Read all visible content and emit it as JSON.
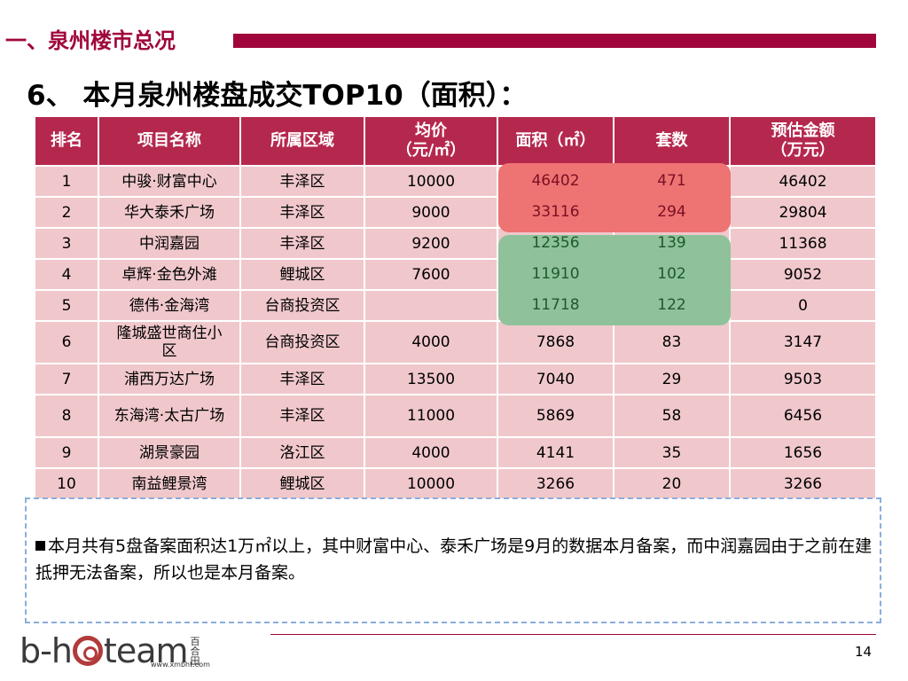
{
  "header": {
    "section_title": "一、泉州楼市总况",
    "slide_title": "6、 本月泉州楼盘成交TOP10（面积）："
  },
  "colors": {
    "brand": "#a0063b",
    "table_header": "#b5284e",
    "row_bg": "#f0c8cb",
    "highlight_red": "#ee7373",
    "highlight_green": "#8fc29a",
    "note_border": "#8aaedc"
  },
  "chart_data": {
    "type": "table",
    "columns": [
      "排名",
      "项目名称",
      "所属区域",
      "均价\n（元/㎡）",
      "面积（㎡）",
      "套数",
      "预估金额\n（万元）"
    ],
    "rows": [
      [
        "1",
        "中骏·财富中心",
        "丰泽区",
        "10000",
        "46402",
        "471",
        "46402"
      ],
      [
        "2",
        "华大泰禾广场",
        "丰泽区",
        "9000",
        "33116",
        "294",
        "29804"
      ],
      [
        "3",
        "中润嘉园",
        "丰泽区",
        "9200",
        "12356",
        "139",
        "11368"
      ],
      [
        "4",
        "卓辉·金色外滩",
        "鲤城区",
        "7600",
        "11910",
        "102",
        "9052"
      ],
      [
        "5",
        "德伟·金海湾",
        "台商投资区",
        "",
        "11718",
        "122",
        "0"
      ],
      [
        "6",
        "隆城盛世商住小区",
        "台商投资区",
        "4000",
        "7868",
        "83",
        "3147"
      ],
      [
        "7",
        "浦西万达广场",
        "丰泽区",
        "13500",
        "7040",
        "29",
        "9503"
      ],
      [
        "8",
        "东海湾·太古广场",
        "丰泽区",
        "11000",
        "5869",
        "58",
        "6456"
      ],
      [
        "9",
        "湖景豪园",
        "洛江区",
        "4000",
        "4141",
        "35",
        "1656"
      ],
      [
        "10",
        "南益鲤景湾",
        "鲤城区",
        "10000",
        "3266",
        "20",
        "3266"
      ]
    ],
    "highlights": [
      {
        "rows": [
          1,
          2
        ],
        "columns": [
          "面积（㎡）",
          "套数"
        ],
        "color": "#ee7373"
      },
      {
        "rows": [
          3,
          4,
          5
        ],
        "columns": [
          "面积（㎡）",
          "套数"
        ],
        "color": "#8fc29a"
      }
    ]
  },
  "table": {
    "headers": {
      "rank": "排名",
      "name": "项目名称",
      "district": "所属区域",
      "price_l1": "均价",
      "price_l2": "（元/㎡）",
      "area": "面积（㎡）",
      "units": "套数",
      "amount_l1": "预估金额",
      "amount_l2": "（万元）"
    },
    "rows": [
      {
        "rank": "1",
        "name": "中骏·财富中心",
        "district": "丰泽区",
        "price": "10000",
        "area": "46402",
        "units": "471",
        "amount": "46402"
      },
      {
        "rank": "2",
        "name": "华大泰禾广场",
        "district": "丰泽区",
        "price": "9000",
        "area": "33116",
        "units": "294",
        "amount": "29804"
      },
      {
        "rank": "3",
        "name": "中润嘉园",
        "district": "丰泽区",
        "price": "9200",
        "area": "12356",
        "units": "139",
        "amount": "11368"
      },
      {
        "rank": "4",
        "name": "卓辉·金色外滩",
        "district": "鲤城区",
        "price": "7600",
        "area": "11910",
        "units": "102",
        "amount": "9052"
      },
      {
        "rank": "5",
        "name": "德伟·金海湾",
        "district": "台商投资区",
        "price": "",
        "area": "11718",
        "units": "122",
        "amount": "0"
      },
      {
        "rank": "6",
        "name": "隆城盛世商住小区",
        "district": "台商投资区",
        "price": "4000",
        "area": "7868",
        "units": "83",
        "amount": "3147"
      },
      {
        "rank": "7",
        "name": "浦西万达广场",
        "district": "丰泽区",
        "price": "13500",
        "area": "7040",
        "units": "29",
        "amount": "9503"
      },
      {
        "rank": "8",
        "name": "东海湾·太古广场",
        "district": "丰泽区",
        "price": "11000",
        "area": "5869",
        "units": "58",
        "amount": "6456"
      },
      {
        "rank": "9",
        "name": "湖景豪园",
        "district": "洛江区",
        "price": "4000",
        "area": "4141",
        "units": "35",
        "amount": "1656"
      },
      {
        "rank": "10",
        "name": "南益鲤景湾",
        "district": "鲤城区",
        "price": "10000",
        "area": "3266",
        "units": "20",
        "amount": "3266"
      }
    ]
  },
  "note": {
    "text": "本月共有5盘备案面积达1万㎡以上，其中财富中心、泰禾广场是9月的数据本月备案，而中润嘉园由于之前在建抵押无法备案，所以也是本月备案。"
  },
  "footer": {
    "logo_text_left": "b-h",
    "logo_text_right": "team",
    "logo_cn": [
      "百",
      "合",
      "田"
    ],
    "logo_url": "www.xmbht.com",
    "page_number": "14"
  }
}
